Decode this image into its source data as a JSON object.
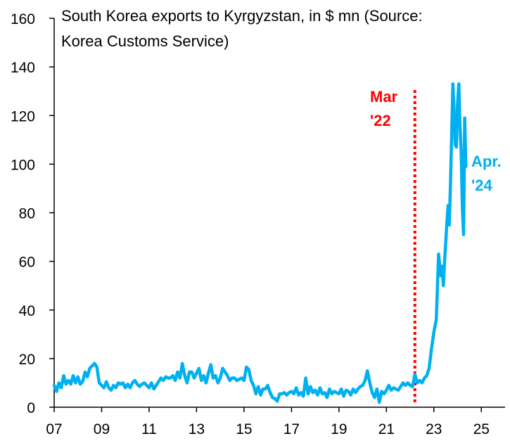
{
  "chart_data": {
    "type": "line",
    "title_lines": [
      "South Korea exports to Kyrgyzstan, in $ mn (Source:",
      "Korea Customs Service)"
    ],
    "xlabel": "",
    "ylabel": "",
    "xlim": [
      2007,
      2026
    ],
    "ylim": [
      0,
      160
    ],
    "x_tick_values": [
      2007,
      2009,
      2011,
      2013,
      2015,
      2017,
      2019,
      2021,
      2023,
      2025
    ],
    "x_tick_labels": [
      "07",
      "09",
      "11",
      "13",
      "15",
      "17",
      "19",
      "21",
      "23",
      "25"
    ],
    "y_ticks": [
      0,
      20,
      40,
      60,
      80,
      100,
      120,
      140,
      160
    ],
    "grid": false,
    "series": [
      {
        "color": "#00B0F0",
        "points": [
          [
            2007.0,
            9
          ],
          [
            2007.1,
            6.5
          ],
          [
            2007.2,
            10
          ],
          [
            2007.3,
            8
          ],
          [
            2007.4,
            13
          ],
          [
            2007.5,
            9.5
          ],
          [
            2007.6,
            11
          ],
          [
            2007.7,
            9.5
          ],
          [
            2007.8,
            13
          ],
          [
            2007.9,
            10
          ],
          [
            2008.0,
            12.5
          ],
          [
            2008.1,
            9.5
          ],
          [
            2008.2,
            10.5
          ],
          [
            2008.3,
            14.5
          ],
          [
            2008.4,
            12.5
          ],
          [
            2008.5,
            16
          ],
          [
            2008.6,
            17
          ],
          [
            2008.7,
            18
          ],
          [
            2008.8,
            16.5
          ],
          [
            2008.9,
            10
          ],
          [
            2009.0,
            9
          ],
          [
            2009.1,
            8
          ],
          [
            2009.2,
            10.5
          ],
          [
            2009.3,
            8
          ],
          [
            2009.4,
            7
          ],
          [
            2009.5,
            9
          ],
          [
            2009.6,
            8
          ],
          [
            2009.7,
            10
          ],
          [
            2009.8,
            9.5
          ],
          [
            2009.9,
            10
          ],
          [
            2010.0,
            8
          ],
          [
            2010.1,
            9.5
          ],
          [
            2010.2,
            8
          ],
          [
            2010.3,
            10
          ],
          [
            2010.4,
            11
          ],
          [
            2010.5,
            9.5
          ],
          [
            2010.6,
            8.5
          ],
          [
            2010.7,
            9.5
          ],
          [
            2010.8,
            10
          ],
          [
            2010.9,
            9
          ],
          [
            2011.0,
            8
          ],
          [
            2011.1,
            10
          ],
          [
            2011.2,
            7.5
          ],
          [
            2011.3,
            9
          ],
          [
            2011.4,
            10.5
          ],
          [
            2011.5,
            12
          ],
          [
            2011.6,
            11
          ],
          [
            2011.7,
            12.5
          ],
          [
            2011.8,
            12
          ],
          [
            2011.9,
            12
          ],
          [
            2012.0,
            13
          ],
          [
            2012.1,
            11
          ],
          [
            2012.2,
            14.5
          ],
          [
            2012.3,
            12
          ],
          [
            2012.4,
            18
          ],
          [
            2012.5,
            13
          ],
          [
            2012.6,
            10
          ],
          [
            2012.7,
            14.5
          ],
          [
            2012.8,
            14.5
          ],
          [
            2012.9,
            12
          ],
          [
            2013.0,
            14
          ],
          [
            2013.1,
            16
          ],
          [
            2013.2,
            11
          ],
          [
            2013.3,
            13
          ],
          [
            2013.4,
            10
          ],
          [
            2013.5,
            14
          ],
          [
            2013.6,
            17.5
          ],
          [
            2013.7,
            12
          ],
          [
            2013.8,
            13
          ],
          [
            2013.9,
            10
          ],
          [
            2014.0,
            12
          ],
          [
            2014.1,
            16
          ],
          [
            2014.2,
            14.5
          ],
          [
            2014.3,
            13
          ],
          [
            2014.4,
            11
          ],
          [
            2014.5,
            12
          ],
          [
            2014.6,
            12
          ],
          [
            2014.7,
            11
          ],
          [
            2014.8,
            11.5
          ],
          [
            2014.9,
            12
          ],
          [
            2015.0,
            11
          ],
          [
            2015.1,
            16.5
          ],
          [
            2015.2,
            15.5
          ],
          [
            2015.3,
            11
          ],
          [
            2015.4,
            9
          ],
          [
            2015.5,
            5.5
          ],
          [
            2015.6,
            8.5
          ],
          [
            2015.7,
            5
          ],
          [
            2015.8,
            7.5
          ],
          [
            2015.9,
            7.5
          ],
          [
            2016.0,
            9
          ],
          [
            2016.1,
            6
          ],
          [
            2016.2,
            4
          ],
          [
            2016.3,
            3.5
          ],
          [
            2016.4,
            2.5
          ],
          [
            2016.5,
            5.5
          ],
          [
            2016.6,
            5.5
          ],
          [
            2016.7,
            6
          ],
          [
            2016.8,
            5
          ],
          [
            2016.9,
            6
          ],
          [
            2017.0,
            6.5
          ],
          [
            2017.1,
            5.5
          ],
          [
            2017.2,
            8
          ],
          [
            2017.3,
            5
          ],
          [
            2017.4,
            6
          ],
          [
            2017.5,
            4.5
          ],
          [
            2017.6,
            12
          ],
          [
            2017.7,
            5.5
          ],
          [
            2017.8,
            8.5
          ],
          [
            2017.9,
            6
          ],
          [
            2018.0,
            7
          ],
          [
            2018.1,
            5
          ],
          [
            2018.2,
            8
          ],
          [
            2018.3,
            5.5
          ],
          [
            2018.4,
            6
          ],
          [
            2018.5,
            4
          ],
          [
            2018.6,
            7.5
          ],
          [
            2018.7,
            5.5
          ],
          [
            2018.8,
            6.5
          ],
          [
            2018.9,
            6
          ],
          [
            2019.0,
            5.5
          ],
          [
            2019.1,
            7.5
          ],
          [
            2019.2,
            4.5
          ],
          [
            2019.3,
            7
          ],
          [
            2019.4,
            6.5
          ],
          [
            2019.5,
            5
          ],
          [
            2019.6,
            7.5
          ],
          [
            2019.7,
            6
          ],
          [
            2019.8,
            7.5
          ],
          [
            2019.9,
            8.5
          ],
          [
            2020.0,
            9
          ],
          [
            2020.1,
            11
          ],
          [
            2020.2,
            15
          ],
          [
            2020.3,
            10
          ],
          [
            2020.4,
            6
          ],
          [
            2020.5,
            4
          ],
          [
            2020.6,
            7.5
          ],
          [
            2020.7,
            2
          ],
          [
            2020.8,
            6.5
          ],
          [
            2020.9,
            5.5
          ],
          [
            2021.0,
            7
          ],
          [
            2021.1,
            9
          ],
          [
            2021.2,
            7
          ],
          [
            2021.3,
            8
          ],
          [
            2021.4,
            7.5
          ],
          [
            2021.5,
            7
          ],
          [
            2021.6,
            8.5
          ],
          [
            2021.7,
            10
          ],
          [
            2021.8,
            9
          ],
          [
            2021.9,
            10
          ],
          [
            2022.0,
            9
          ],
          [
            2022.1,
            8.5
          ],
          [
            2022.2,
            13.5
          ],
          [
            2022.3,
            10
          ],
          [
            2022.4,
            11
          ],
          [
            2022.5,
            10
          ],
          [
            2022.6,
            12
          ],
          [
            2022.7,
            13
          ],
          [
            2022.8,
            16
          ],
          [
            2022.9,
            24
          ],
          [
            2023.0,
            31
          ],
          [
            2023.1,
            36
          ],
          [
            2023.15,
            50
          ],
          [
            2023.2,
            63
          ],
          [
            2023.25,
            58
          ],
          [
            2023.3,
            54
          ],
          [
            2023.35,
            58
          ],
          [
            2023.4,
            50
          ],
          [
            2023.45,
            60
          ],
          [
            2023.5,
            68
          ],
          [
            2023.55,
            76
          ],
          [
            2023.6,
            83
          ],
          [
            2023.65,
            75
          ],
          [
            2023.7,
            92
          ],
          [
            2023.75,
            112
          ],
          [
            2023.8,
            133
          ],
          [
            2023.85,
            122
          ],
          [
            2023.9,
            108
          ],
          [
            2023.95,
            107
          ],
          [
            2024.0,
            125
          ],
          [
            2024.05,
            133
          ],
          [
            2024.1,
            116
          ],
          [
            2024.15,
            105
          ],
          [
            2024.2,
            82
          ],
          [
            2024.25,
            71
          ],
          [
            2024.3,
            119
          ],
          [
            2024.35,
            99
          ]
        ]
      }
    ],
    "vline": {
      "x": 2022.2,
      "color": "#FF0000",
      "style": "dotted",
      "label_lines": [
        "Mar",
        "'22"
      ]
    },
    "end_label": {
      "color": "#00B0F0",
      "label_lines": [
        "Apr.",
        "'24"
      ]
    }
  }
}
